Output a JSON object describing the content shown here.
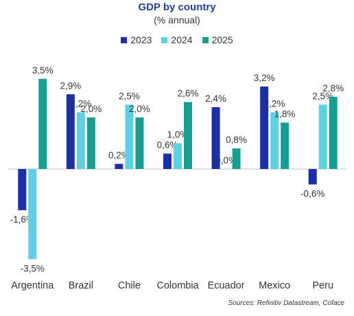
{
  "chart_data": {
    "type": "bar",
    "title": "GDP by country",
    "subtitle": "(% annual)",
    "categories": [
      "Argentina",
      "Brazil",
      "Chile",
      "Colombia",
      "Ecuador",
      "Mexico",
      "Peru"
    ],
    "series": [
      {
        "name": "2023",
        "color": "#1c2fa8",
        "values": [
          -1.6,
          2.9,
          0.2,
          0.6,
          2.4,
          3.2,
          -0.6
        ],
        "labels": [
          "-1,6%",
          "2,9%",
          "0,2%",
          "0,6%",
          "2,4%",
          "3,2%",
          "-0,6%"
        ]
      },
      {
        "name": "2024",
        "color": "#5fd0e4",
        "values": [
          -3.5,
          2.2,
          2.5,
          1.0,
          0.0,
          2.2,
          2.5
        ],
        "labels": [
          "-3,5%",
          "2,2%",
          "2,5%",
          "1,0%",
          "0,0%",
          "2,2%",
          "2,5%"
        ]
      },
      {
        "name": "2025",
        "color": "#179e92",
        "values": [
          3.5,
          2.0,
          2.0,
          2.6,
          0.8,
          1.8,
          2.8
        ],
        "labels": [
          "3,5%",
          "2,0%",
          "2,0%",
          "2,6%",
          "0,8%",
          "1,8%",
          "2,8%"
        ]
      }
    ],
    "ylim": [
      -3.5,
      3.5
    ],
    "grid": false,
    "legend_position": "top"
  },
  "source": "Sources: Refinitiv Datastream, Coface"
}
